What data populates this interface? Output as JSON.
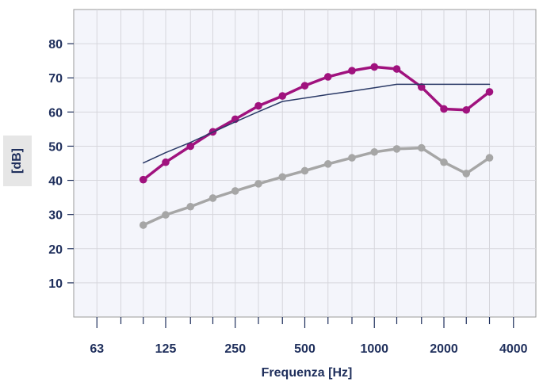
{
  "chart_data": {
    "type": "line",
    "xlabel": "Frequenza [Hz]",
    "ylabel": "[dB]",
    "x_scale": "log",
    "xlim": [
      50,
      5000
    ],
    "ylim": [
      0,
      90
    ],
    "x_ticks": [
      63,
      125,
      250,
      500,
      1000,
      2000,
      4000
    ],
    "x_tick_labels": [
      "63",
      "125",
      "250",
      "500",
      "1000",
      "2000",
      "4000"
    ],
    "y_ticks": [
      10,
      20,
      30,
      40,
      50,
      60,
      70,
      80
    ],
    "y_tick_labels": [
      "10",
      "20",
      "30",
      "40",
      "50",
      "60",
      "70",
      "80"
    ],
    "grid": true,
    "x": [
      100,
      125,
      160,
      200,
      250,
      315,
      400,
      500,
      630,
      800,
      1000,
      1250,
      1600,
      2000,
      2500,
      3150
    ],
    "series": [
      {
        "color": "#a0127e",
        "markers": true,
        "values": [
          40.2,
          45.3,
          50.0,
          54.2,
          57.9,
          61.8,
          64.7,
          67.7,
          70.3,
          72.1,
          73.2,
          72.6,
          67.3,
          60.9,
          60.6,
          65.9
        ]
      },
      {
        "color": "#a6a6a6",
        "markers": true,
        "values": [
          26.9,
          29.9,
          32.3,
          34.8,
          36.9,
          39.0,
          41.0,
          42.8,
          44.8,
          46.6,
          48.3,
          49.2,
          49.5,
          45.3,
          42.0,
          46.6
        ]
      },
      {
        "color": "#2b3a67",
        "markers": false,
        "values": [
          45.1,
          48.1,
          51.1,
          54.1,
          57.1,
          60.1,
          63.1,
          64.1,
          65.1,
          66.1,
          67.1,
          68.1,
          68.1,
          68.1,
          68.1,
          68.1
        ]
      }
    ]
  }
}
